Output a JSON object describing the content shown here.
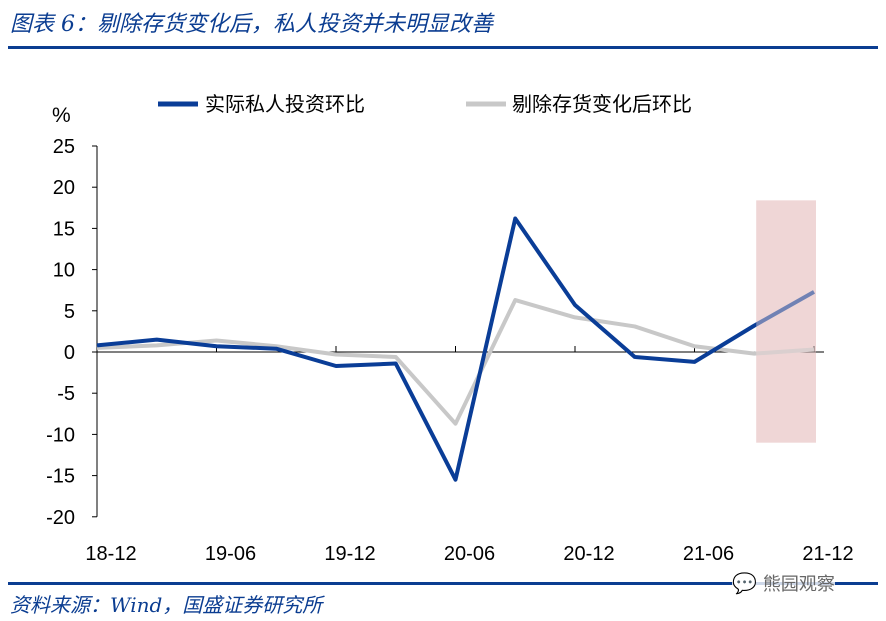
{
  "title": "图表 6：剔除存货变化后，私人投资并未明显改善",
  "source": "资料来源：Wind，国盛证券研究所",
  "watermark": "熊园观察",
  "colors": {
    "brand": "#0b3d91",
    "series1": "#0a3d97",
    "series2": "#c8c8c8",
    "highlight": "#efd6d6"
  },
  "chart_data": {
    "type": "line",
    "ylabel": "%",
    "ylim": [
      -20,
      25
    ],
    "yticks": [
      25,
      20,
      15,
      10,
      5,
      0,
      -5,
      -10,
      -15,
      -20
    ],
    "x": [
      "18-12",
      "19-03",
      "19-06",
      "19-09",
      "19-12",
      "20-03",
      "20-06",
      "20-09",
      "20-12",
      "21-03",
      "21-06",
      "21-09",
      "21-12"
    ],
    "xtick_labels": [
      "18-12",
      "19-06",
      "19-12",
      "20-06",
      "20-12",
      "21-06",
      "21-12"
    ],
    "legend": "top",
    "series": [
      {
        "name": "实际私人投资环比",
        "values": [
          0.8,
          1.5,
          0.7,
          0.4,
          -1.7,
          -1.4,
          -15.5,
          16.2,
          5.7,
          -0.6,
          -1.2,
          3.2,
          7.3
        ]
      },
      {
        "name": "剔除存货变化后环比",
        "values": [
          0.5,
          0.8,
          1.4,
          0.7,
          -0.3,
          -0.6,
          -8.7,
          6.3,
          4.2,
          3.1,
          0.7,
          -0.2,
          0.3
        ]
      }
    ],
    "highlight_range": [
      "21-09",
      "21-12"
    ]
  }
}
